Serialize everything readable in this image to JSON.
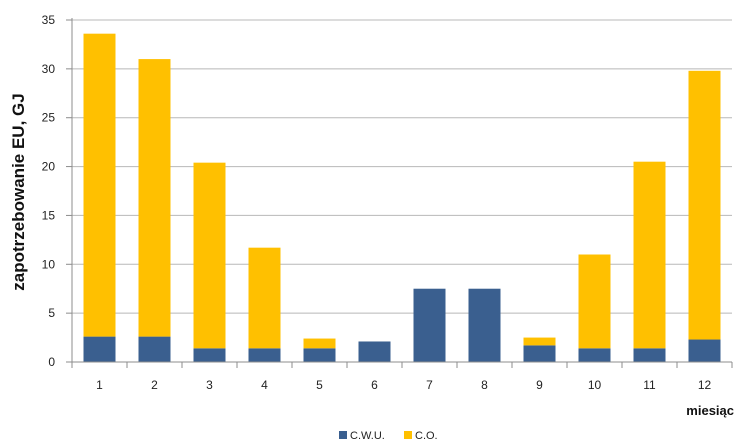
{
  "chart_data": {
    "type": "bar",
    "stacked": true,
    "categories": [
      "1",
      "2",
      "3",
      "4",
      "5",
      "6",
      "7",
      "8",
      "9",
      "10",
      "11",
      "12"
    ],
    "series": [
      {
        "name": "C.W.U.",
        "color": "#3a5f8f",
        "values": [
          2.6,
          2.6,
          1.4,
          1.4,
          1.4,
          2.1,
          7.5,
          7.5,
          1.7,
          1.4,
          1.4,
          2.3
        ]
      },
      {
        "name": "C.O.",
        "color": "#ffc000",
        "values": [
          31.0,
          28.4,
          19.0,
          10.3,
          1.0,
          0,
          0,
          0,
          0.8,
          9.6,
          19.1,
          27.5
        ]
      }
    ],
    "xlabel": "miesiąc",
    "ylabel": "zapotrzebowanie EU, GJ",
    "ylim": [
      0,
      35
    ],
    "yticks": [
      "0",
      "5",
      "10",
      "15",
      "20",
      "25",
      "30",
      "35"
    ],
    "grid": true,
    "legend_position": "bottom"
  }
}
